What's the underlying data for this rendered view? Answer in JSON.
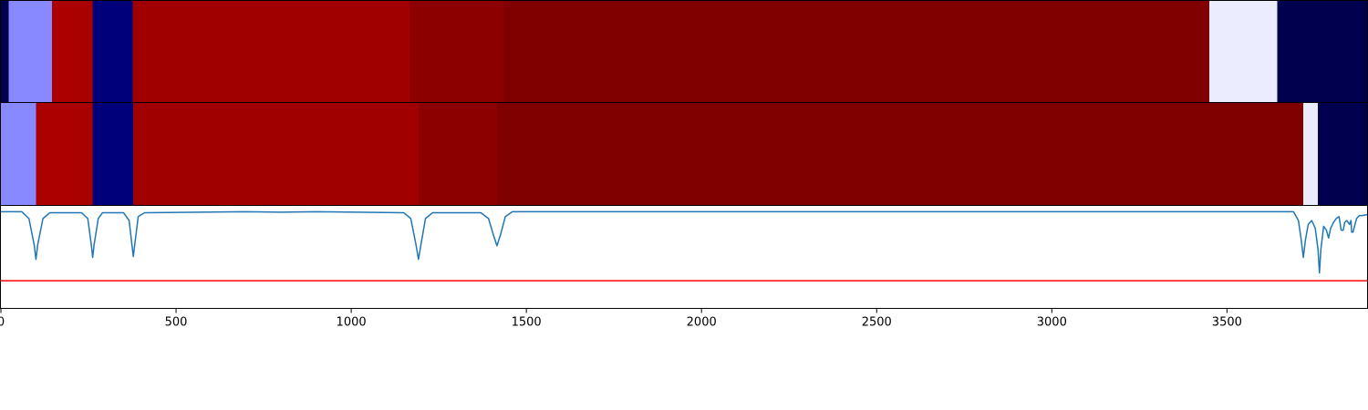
{
  "chart_data": {
    "type": "heatmap",
    "x_axis": {
      "range": [
        0,
        3900
      ],
      "ticks": [
        0,
        500,
        1000,
        1500,
        2000,
        2500,
        3000,
        3500
      ],
      "tick_labels": [
        "0",
        "500",
        "1000",
        "1500",
        "2000",
        "2500",
        "3000",
        "3500"
      ]
    },
    "strips": [
      {
        "segments": [
          {
            "start": 0,
            "end": 22,
            "color": "#00004f"
          },
          {
            "start": 22,
            "end": 146,
            "color": "#8888ff"
          },
          {
            "start": 146,
            "end": 262,
            "color": "#aa0000"
          },
          {
            "start": 262,
            "end": 376,
            "color": "#00007a"
          },
          {
            "start": 376,
            "end": 1166,
            "color": "#a00000"
          },
          {
            "start": 1166,
            "end": 1436,
            "color": "#8c0000"
          },
          {
            "start": 1436,
            "end": 3450,
            "color": "#800000"
          },
          {
            "start": 3450,
            "end": 3644,
            "color": "#ececff"
          },
          {
            "start": 3644,
            "end": 3900,
            "color": "#00004f"
          }
        ]
      },
      {
        "segments": [
          {
            "start": 0,
            "end": 100,
            "color": "#8888ff"
          },
          {
            "start": 100,
            "end": 262,
            "color": "#aa0000"
          },
          {
            "start": 262,
            "end": 378,
            "color": "#00007a"
          },
          {
            "start": 378,
            "end": 1192,
            "color": "#a00000"
          },
          {
            "start": 1192,
            "end": 1416,
            "color": "#8c0000"
          },
          {
            "start": 1416,
            "end": 3718,
            "color": "#800000"
          },
          {
            "start": 3718,
            "end": 3760,
            "color": "#ececff"
          },
          {
            "start": 3760,
            "end": 3900,
            "color": "#00004f"
          }
        ]
      }
    ],
    "line_panel": {
      "ylim": [
        -1.0,
        0.05
      ],
      "threshold": {
        "y": -0.72,
        "color": "#ff0000"
      },
      "series": {
        "color": "#1f77b4",
        "points": [
          [
            0,
            -0.01
          ],
          [
            60,
            -0.01
          ],
          [
            80,
            -0.08
          ],
          [
            95,
            -0.35
          ],
          [
            100,
            -0.5
          ],
          [
            105,
            -0.35
          ],
          [
            120,
            -0.08
          ],
          [
            140,
            -0.02
          ],
          [
            230,
            -0.02
          ],
          [
            248,
            -0.08
          ],
          [
            258,
            -0.35
          ],
          [
            262,
            -0.48
          ],
          [
            266,
            -0.35
          ],
          [
            278,
            -0.08
          ],
          [
            290,
            -0.02
          ],
          [
            350,
            -0.02
          ],
          [
            366,
            -0.1
          ],
          [
            374,
            -0.35
          ],
          [
            378,
            -0.47
          ],
          [
            382,
            -0.35
          ],
          [
            392,
            -0.06
          ],
          [
            410,
            -0.02
          ],
          [
            700,
            -0.01
          ],
          [
            800,
            -0.015
          ],
          [
            900,
            -0.01
          ],
          [
            1150,
            -0.02
          ],
          [
            1170,
            -0.08
          ],
          [
            1185,
            -0.35
          ],
          [
            1192,
            -0.5
          ],
          [
            1199,
            -0.35
          ],
          [
            1212,
            -0.08
          ],
          [
            1232,
            -0.02
          ],
          [
            1370,
            -0.02
          ],
          [
            1392,
            -0.08
          ],
          [
            1406,
            -0.25
          ],
          [
            1416,
            -0.36
          ],
          [
            1426,
            -0.25
          ],
          [
            1440,
            -0.06
          ],
          [
            1460,
            -0.01
          ],
          [
            3690,
            -0.01
          ],
          [
            3704,
            -0.1
          ],
          [
            3712,
            -0.3
          ],
          [
            3718,
            -0.48
          ],
          [
            3724,
            -0.3
          ],
          [
            3732,
            -0.14
          ],
          [
            3742,
            -0.1
          ],
          [
            3752,
            -0.18
          ],
          [
            3760,
            -0.4
          ],
          [
            3764,
            -0.64
          ],
          [
            3768,
            -0.4
          ],
          [
            3776,
            -0.16
          ],
          [
            3784,
            -0.2
          ],
          [
            3790,
            -0.28
          ],
          [
            3796,
            -0.18
          ],
          [
            3804,
            -0.12
          ],
          [
            3812,
            -0.08
          ],
          [
            3820,
            -0.06
          ],
          [
            3826,
            -0.2
          ],
          [
            3832,
            -0.2
          ],
          [
            3836,
            -0.12
          ],
          [
            3842,
            -0.1
          ],
          [
            3850,
            -0.14
          ],
          [
            3854,
            -0.1
          ],
          [
            3856,
            -0.22
          ],
          [
            3860,
            -0.22
          ],
          [
            3864,
            -0.16
          ],
          [
            3870,
            -0.08
          ],
          [
            3878,
            -0.05
          ],
          [
            3886,
            -0.05
          ],
          [
            3900,
            -0.04
          ]
        ]
      }
    }
  }
}
